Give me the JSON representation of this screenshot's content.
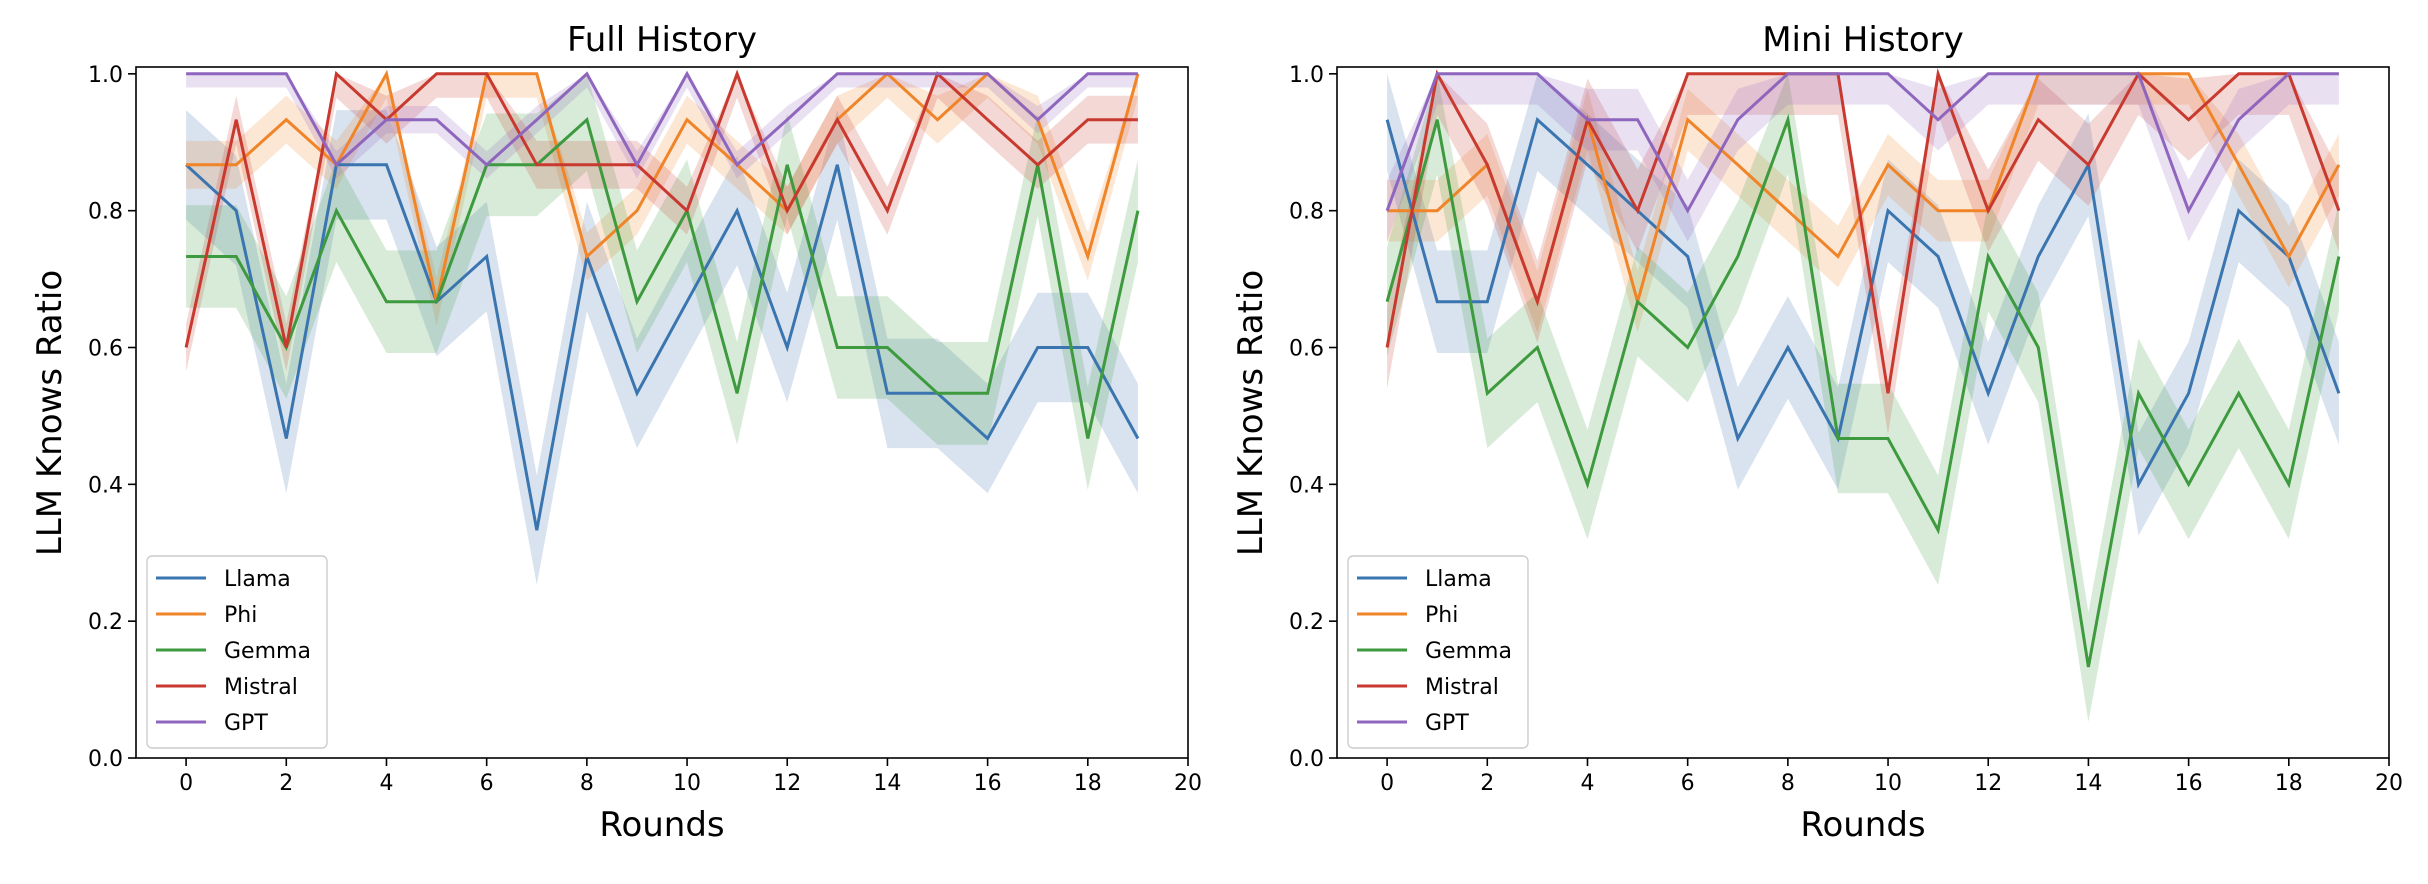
{
  "chart_data": [
    {
      "type": "line",
      "title": "Full History",
      "xlabel": "Rounds",
      "ylabel": "LLM Knows Ratio",
      "xlim": [
        -1,
        20
      ],
      "ylim": [
        0,
        1.01
      ],
      "xticks": [
        "0",
        "2",
        "4",
        "6",
        "8",
        "10",
        "12",
        "14",
        "16",
        "18",
        "20"
      ],
      "yticks": [
        "0.0",
        "0.2",
        "0.4",
        "0.6",
        "0.8",
        "1.0"
      ],
      "legend_position": "lower-left",
      "x": [
        0,
        1,
        2,
        3,
        4,
        5,
        6,
        7,
        8,
        9,
        10,
        11,
        12,
        13,
        14,
        15,
        16,
        17,
        18,
        19
      ],
      "series": [
        {
          "name": "Llama",
          "color": "#3a75b0",
          "values": [
            0.867,
            0.8,
            0.467,
            0.867,
            0.867,
            0.667,
            0.733,
            0.333,
            0.733,
            0.533,
            0.667,
            0.8,
            0.6,
            0.867,
            0.533,
            0.533,
            0.467,
            0.6,
            0.6,
            0.467
          ],
          "band": 0.08
        },
        {
          "name": "Phi",
          "color": "#f08428",
          "values": [
            0.867,
            0.867,
            0.933,
            0.867,
            1.0,
            0.667,
            1.0,
            1.0,
            0.733,
            0.8,
            0.933,
            0.867,
            0.8,
            0.933,
            1.0,
            0.933,
            1.0,
            0.933,
            0.733,
            1.0
          ],
          "band": 0.035
        },
        {
          "name": "Gemma",
          "color": "#3e9a3e",
          "values": [
            0.733,
            0.733,
            0.6,
            0.8,
            0.667,
            0.667,
            0.867,
            0.867,
            0.933,
            0.667,
            0.8,
            0.533,
            0.867,
            0.6,
            0.6,
            0.533,
            0.533,
            0.867,
            0.467,
            0.8
          ],
          "band": 0.075
        },
        {
          "name": "Mistral",
          "color": "#c83a30",
          "values": [
            0.6,
            0.933,
            0.6,
            1.0,
            0.933,
            1.0,
            1.0,
            0.867,
            0.867,
            0.867,
            0.8,
            1.0,
            0.8,
            0.933,
            0.8,
            1.0,
            0.933,
            0.867,
            0.933,
            0.933
          ],
          "band": 0.035
        },
        {
          "name": "GPT",
          "color": "#8f66bd",
          "values": [
            1.0,
            1.0,
            1.0,
            0.867,
            0.933,
            0.933,
            0.867,
            0.933,
            1.0,
            0.867,
            1.0,
            0.867,
            0.933,
            1.0,
            1.0,
            1.0,
            1.0,
            0.933,
            1.0,
            1.0
          ],
          "band": 0.02
        }
      ]
    },
    {
      "type": "line",
      "title": "Mini History",
      "xlabel": "Rounds",
      "ylabel": "LLM Knows Ratio",
      "xlim": [
        -1,
        20
      ],
      "ylim": [
        0,
        1.01
      ],
      "xticks": [
        "0",
        "2",
        "4",
        "6",
        "8",
        "10",
        "12",
        "14",
        "16",
        "18",
        "20"
      ],
      "yticks": [
        "0.0",
        "0.2",
        "0.4",
        "0.6",
        "0.8",
        "1.0"
      ],
      "legend_position": "lower-left",
      "x": [
        0,
        1,
        2,
        3,
        4,
        5,
        6,
        7,
        8,
        9,
        10,
        11,
        12,
        13,
        14,
        15,
        16,
        17,
        18,
        19
      ],
      "series": [
        {
          "name": "Llama",
          "color": "#3a75b0",
          "values": [
            0.933,
            0.667,
            0.667,
            0.933,
            0.867,
            0.8,
            0.733,
            0.467,
            0.6,
            0.467,
            0.8,
            0.733,
            0.533,
            0.733,
            0.867,
            0.4,
            0.533,
            0.8,
            0.733,
            0.533
          ],
          "band": 0.075
        },
        {
          "name": "Phi",
          "color": "#f08428",
          "values": [
            0.8,
            0.8,
            0.867,
            0.667,
            0.933,
            0.667,
            0.933,
            0.867,
            0.8,
            0.733,
            0.867,
            0.8,
            0.8,
            1.0,
            1.0,
            1.0,
            1.0,
            0.867,
            0.733,
            0.867
          ],
          "band": 0.045
        },
        {
          "name": "Gemma",
          "color": "#3e9a3e",
          "values": [
            0.667,
            0.933,
            0.533,
            0.6,
            0.4,
            0.667,
            0.6,
            0.733,
            0.933,
            0.467,
            0.467,
            0.333,
            0.733,
            0.6,
            0.133,
            0.533,
            0.4,
            0.533,
            0.4,
            0.733
          ],
          "band": 0.08
        },
        {
          "name": "Mistral",
          "color": "#c83a30",
          "values": [
            0.6,
            1.0,
            0.867,
            0.667,
            0.933,
            0.8,
            1.0,
            1.0,
            1.0,
            1.0,
            0.533,
            1.0,
            0.8,
            0.933,
            0.867,
            1.0,
            0.933,
            1.0,
            1.0,
            0.8
          ],
          "band": 0.06
        },
        {
          "name": "GPT",
          "color": "#8f66bd",
          "values": [
            0.8,
            1.0,
            1.0,
            1.0,
            0.933,
            0.933,
            0.8,
            0.933,
            1.0,
            1.0,
            1.0,
            0.933,
            1.0,
            1.0,
            1.0,
            1.0,
            0.8,
            0.933,
            1.0,
            1.0
          ],
          "band": 0.045
        }
      ]
    }
  ]
}
